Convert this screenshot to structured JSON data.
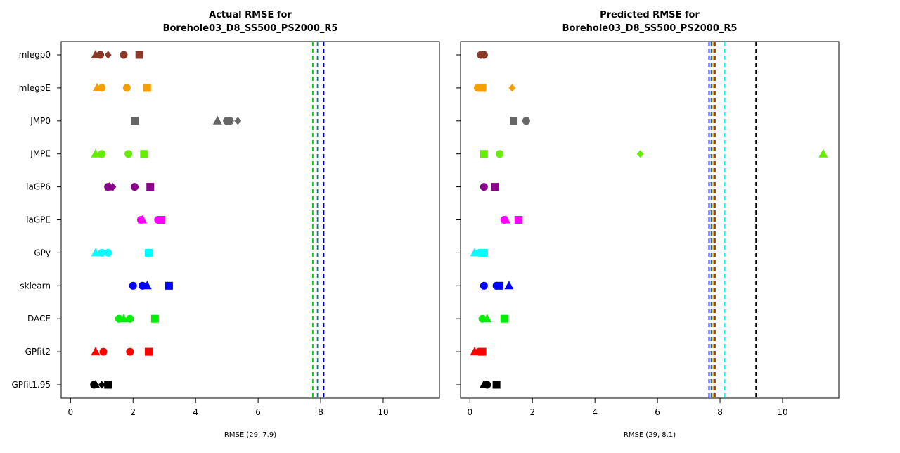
{
  "chart_data": [
    {
      "type": "scatter",
      "title_line1": "Actual RMSE for",
      "title_line2": "Borehole03_D8_SS500_PS2000_R5",
      "xlabel": "RMSE (29, 7.9)",
      "xlim": [
        -0.3,
        11.8
      ],
      "xticks": [
        0,
        2,
        4,
        6,
        8,
        10
      ],
      "categories": [
        "mlegp0",
        "mlegpE",
        "JMP0",
        "JMPE",
        "laGP6",
        "laGPE",
        "GPy",
        "sklearn",
        "DACE",
        "GPfit2",
        "GPfit1.95"
      ],
      "colors": [
        "#8B3A2A",
        "#F5A000",
        "#666666",
        "#66EE00",
        "#8B008B",
        "#FF00FF",
        "#00FFFF",
        "#0000FF",
        "#00EE00",
        "#FF0000",
        "#000000"
      ],
      "markers": {
        "mlegp0": [
          {
            "s": "triangle",
            "x": 0.8
          },
          {
            "s": "circle",
            "x": 0.95
          },
          {
            "s": "diamond",
            "x": 1.2
          },
          {
            "s": "circle",
            "x": 1.7
          },
          {
            "s": "square",
            "x": 2.2
          }
        ],
        "mlegpE": [
          {
            "s": "triangle",
            "x": 0.85
          },
          {
            "s": "circle",
            "x": 1.0
          },
          {
            "s": "circle",
            "x": 1.8
          },
          {
            "s": "square",
            "x": 2.45
          }
        ],
        "JMP0": [
          {
            "s": "square",
            "x": 2.05
          },
          {
            "s": "triangle",
            "x": 4.7
          },
          {
            "s": "circle",
            "x": 5.0
          },
          {
            "s": "circle",
            "x": 5.1
          },
          {
            "s": "diamond",
            "x": 5.35
          }
        ],
        "JMPE": [
          {
            "s": "triangle",
            "x": 0.8
          },
          {
            "s": "circle",
            "x": 1.0
          },
          {
            "s": "circle",
            "x": 1.85
          },
          {
            "s": "square",
            "x": 2.35
          }
        ],
        "laGP6": [
          {
            "s": "circle",
            "x": 1.2
          },
          {
            "s": "triangle",
            "x": 1.25
          },
          {
            "s": "diamond",
            "x": 1.35
          },
          {
            "s": "circle",
            "x": 2.05
          },
          {
            "s": "square",
            "x": 2.55
          }
        ],
        "laGPE": [
          {
            "s": "circle",
            "x": 2.25
          },
          {
            "s": "triangle",
            "x": 2.3
          },
          {
            "s": "circle",
            "x": 2.8
          },
          {
            "s": "square",
            "x": 2.9
          }
        ],
        "GPy": [
          {
            "s": "triangle",
            "x": 0.8
          },
          {
            "s": "circle",
            "x": 1.0
          },
          {
            "s": "circle",
            "x": 1.2
          },
          {
            "s": "square",
            "x": 2.5
          }
        ],
        "sklearn": [
          {
            "s": "circle",
            "x": 2.0
          },
          {
            "s": "circle",
            "x": 2.3
          },
          {
            "s": "triangle",
            "x": 2.45
          },
          {
            "s": "square",
            "x": 3.15
          }
        ],
        "DACE": [
          {
            "s": "circle",
            "x": 1.55
          },
          {
            "s": "triangle",
            "x": 1.7
          },
          {
            "s": "circle",
            "x": 1.9
          },
          {
            "s": "square",
            "x": 2.7
          }
        ],
        "GPfit2": [
          {
            "s": "triangle",
            "x": 0.8
          },
          {
            "s": "circle",
            "x": 1.05
          },
          {
            "s": "circle",
            "x": 1.9
          },
          {
            "s": "square",
            "x": 2.5
          }
        ],
        "GPfit1.95": [
          {
            "s": "circle",
            "x": 0.75
          },
          {
            "s": "triangle",
            "x": 0.8
          },
          {
            "s": "diamond",
            "x": 1.0
          },
          {
            "s": "square",
            "x": 1.2
          }
        ]
      },
      "vlines": [
        {
          "x": 7.75,
          "color": "#00CC00"
        },
        {
          "x": 7.9,
          "color": "#008080"
        },
        {
          "x": 8.1,
          "color": "#0000AA"
        }
      ]
    },
    {
      "type": "scatter",
      "title_line1": "Predicted RMSE for",
      "title_line2": "Borehole03_D8_SS500_PS2000_R5",
      "xlabel": "RMSE (29, 8.1)",
      "xlim": [
        -0.3,
        11.8
      ],
      "xticks": [
        0,
        2,
        4,
        6,
        8,
        10
      ],
      "categories": [
        "mlegp0",
        "mlegpE",
        "JMP0",
        "JMPE",
        "laGP6",
        "laGPE",
        "GPy",
        "sklearn",
        "DACE",
        "GPfit2",
        "GPfit1.95"
      ],
      "colors": [
        "#8B3A2A",
        "#F5A000",
        "#666666",
        "#66EE00",
        "#8B008B",
        "#FF00FF",
        "#00FFFF",
        "#0000FF",
        "#00EE00",
        "#FF0000",
        "#000000"
      ],
      "markers": {
        "mlegp0": [
          {
            "s": "circle",
            "x": 0.35
          },
          {
            "s": "circle",
            "x": 0.45
          }
        ],
        "mlegpE": [
          {
            "s": "circle",
            "x": 0.25
          },
          {
            "s": "square",
            "x": 0.4
          },
          {
            "s": "diamond",
            "x": 1.35
          }
        ],
        "JMP0": [
          {
            "s": "square",
            "x": 1.4
          },
          {
            "s": "circle",
            "x": 1.8
          }
        ],
        "JMPE": [
          {
            "s": "square",
            "x": 0.45
          },
          {
            "s": "circle",
            "x": 0.95
          },
          {
            "s": "diamond",
            "x": 5.45
          },
          {
            "s": "triangle",
            "x": 11.3
          }
        ],
        "laGP6": [
          {
            "s": "circle",
            "x": 0.45
          },
          {
            "s": "square",
            "x": 0.8
          }
        ],
        "laGPE": [
          {
            "s": "circle",
            "x": 1.1
          },
          {
            "s": "triangle",
            "x": 1.15
          },
          {
            "s": "square",
            "x": 1.55
          }
        ],
        "GPy": [
          {
            "s": "triangle",
            "x": 0.15
          },
          {
            "s": "circle",
            "x": 0.3
          },
          {
            "s": "square",
            "x": 0.45
          }
        ],
        "sklearn": [
          {
            "s": "circle",
            "x": 0.45
          },
          {
            "s": "circle",
            "x": 0.85
          },
          {
            "s": "square",
            "x": 0.95
          },
          {
            "s": "triangle",
            "x": 1.25
          }
        ],
        "DACE": [
          {
            "s": "circle",
            "x": 0.4
          },
          {
            "s": "triangle",
            "x": 0.55
          },
          {
            "s": "square",
            "x": 1.1
          }
        ],
        "GPfit2": [
          {
            "s": "triangle",
            "x": 0.15
          },
          {
            "s": "circle",
            "x": 0.3
          },
          {
            "s": "square",
            "x": 0.4
          }
        ],
        "GPfit1.95": [
          {
            "s": "triangle",
            "x": 0.45
          },
          {
            "s": "circle",
            "x": 0.55
          },
          {
            "s": "square",
            "x": 0.85
          }
        ]
      },
      "vlines": [
        {
          "x": 7.65,
          "color": "#0000DD"
        },
        {
          "x": 7.72,
          "color": "#008080"
        },
        {
          "x": 7.78,
          "color": "#F5A000"
        },
        {
          "x": 7.84,
          "color": "#8B3A2A"
        },
        {
          "x": 8.15,
          "color": "#00FFFF"
        },
        {
          "x": 9.15,
          "color": "#000000"
        }
      ]
    }
  ]
}
